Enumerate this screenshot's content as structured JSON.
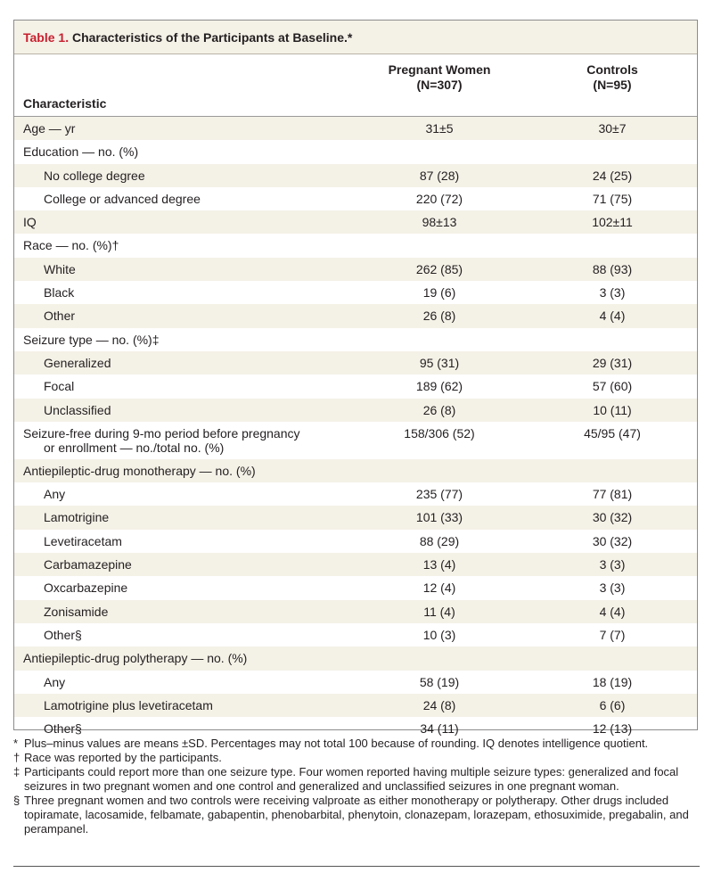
{
  "table": {
    "title_number": "Table 1.",
    "title_text": " Characteristics of the Participants at Baseline.*",
    "headers": {
      "characteristic": "Characteristic",
      "pregnant_line1": "Pregnant Women",
      "pregnant_line2": "(N=307)",
      "controls_line1": "Controls",
      "controls_line2": "(N=95)"
    },
    "rows": [
      {
        "label": "Age — yr",
        "pregnant": "31±5",
        "controls": "30±7"
      },
      {
        "label": "Education — no. (%)",
        "pregnant": "",
        "controls": ""
      },
      {
        "label": "No college degree",
        "pregnant": "87 (28)",
        "controls": "24 (25)"
      },
      {
        "label": "College or advanced degree",
        "pregnant": "220 (72)",
        "controls": "71 (75)"
      },
      {
        "label": "IQ",
        "pregnant": "98±13",
        "controls": "102±11"
      },
      {
        "label": "Race — no. (%)†",
        "pregnant": "",
        "controls": ""
      },
      {
        "label": "White",
        "pregnant": "262 (85)",
        "controls": "88 (93)"
      },
      {
        "label": "Black",
        "pregnant": "19 (6)",
        "controls": "3 (3)"
      },
      {
        "label": "Other",
        "pregnant": "26 (8)",
        "controls": "4 (4)"
      },
      {
        "label": "Seizure type — no. (%)‡",
        "pregnant": "",
        "controls": ""
      },
      {
        "label": "Generalized",
        "pregnant": "95 (31)",
        "controls": "29 (31)"
      },
      {
        "label": "Focal",
        "pregnant": "189 (62)",
        "controls": "57 (60)"
      },
      {
        "label": "Unclassified",
        "pregnant": "26 (8)",
        "controls": "10 (11)"
      },
      {
        "label": "Seizure-free during 9-mo period before pregnancy",
        "label2": "or enrollment — no./total no. (%)",
        "pregnant": "158/306 (52)",
        "controls": "45/95 (47)"
      },
      {
        "label": "Antiepileptic-drug monotherapy — no. (%)",
        "pregnant": "",
        "controls": ""
      },
      {
        "label": "Any",
        "pregnant": "235 (77)",
        "controls": "77 (81)"
      },
      {
        "label": "Lamotrigine",
        "pregnant": "101 (33)",
        "controls": "30 (32)"
      },
      {
        "label": "Levetiracetam",
        "pregnant": "88 (29)",
        "controls": "30 (32)"
      },
      {
        "label": "Carbamazepine",
        "pregnant": "13 (4)",
        "controls": "3 (3)"
      },
      {
        "label": "Oxcarbazepine",
        "pregnant": "12 (4)",
        "controls": "3 (3)"
      },
      {
        "label": "Zonisamide",
        "pregnant": "11 (4)",
        "controls": "4 (4)"
      },
      {
        "label": "Other§",
        "pregnant": "10 (3)",
        "controls": "7 (7)"
      },
      {
        "label": "Antiepileptic-drug polytherapy — no. (%)",
        "pregnant": "",
        "controls": ""
      },
      {
        "label": "Any",
        "pregnant": "58 (19)",
        "controls": "18 (19)"
      },
      {
        "label": "Lamotrigine plus levetiracetam",
        "pregnant": "24 (8)",
        "controls": "6 (6)"
      },
      {
        "label": "Other§",
        "pregnant": "34 (11)",
        "controls": "12 (13)"
      }
    ]
  },
  "footnotes": [
    {
      "symbol": "*",
      "text": "Plus–minus values are means ±SD. Percentages may not total 100 because of rounding. IQ denotes intelligence quotient."
    },
    {
      "symbol": "†",
      "text": "Race was reported by the participants."
    },
    {
      "symbol": "‡",
      "text": "Participants could report more than one seizure type. Four women reported having multiple seizure types: generalized and focal seizures in two pregnant women and one control and generalized and unclassified seizures in one pregnant woman."
    },
    {
      "symbol": "§",
      "text": "Three pregnant women and two controls were receiving valproate as either monotherapy or polytherapy. Other drugs included topiramate, lacosamide, felbamate, gabapentin, phenobarbital, phenytoin, clonazepam, lorazepam, ethosuximide, pregabalin, and perampanel."
    }
  ]
}
